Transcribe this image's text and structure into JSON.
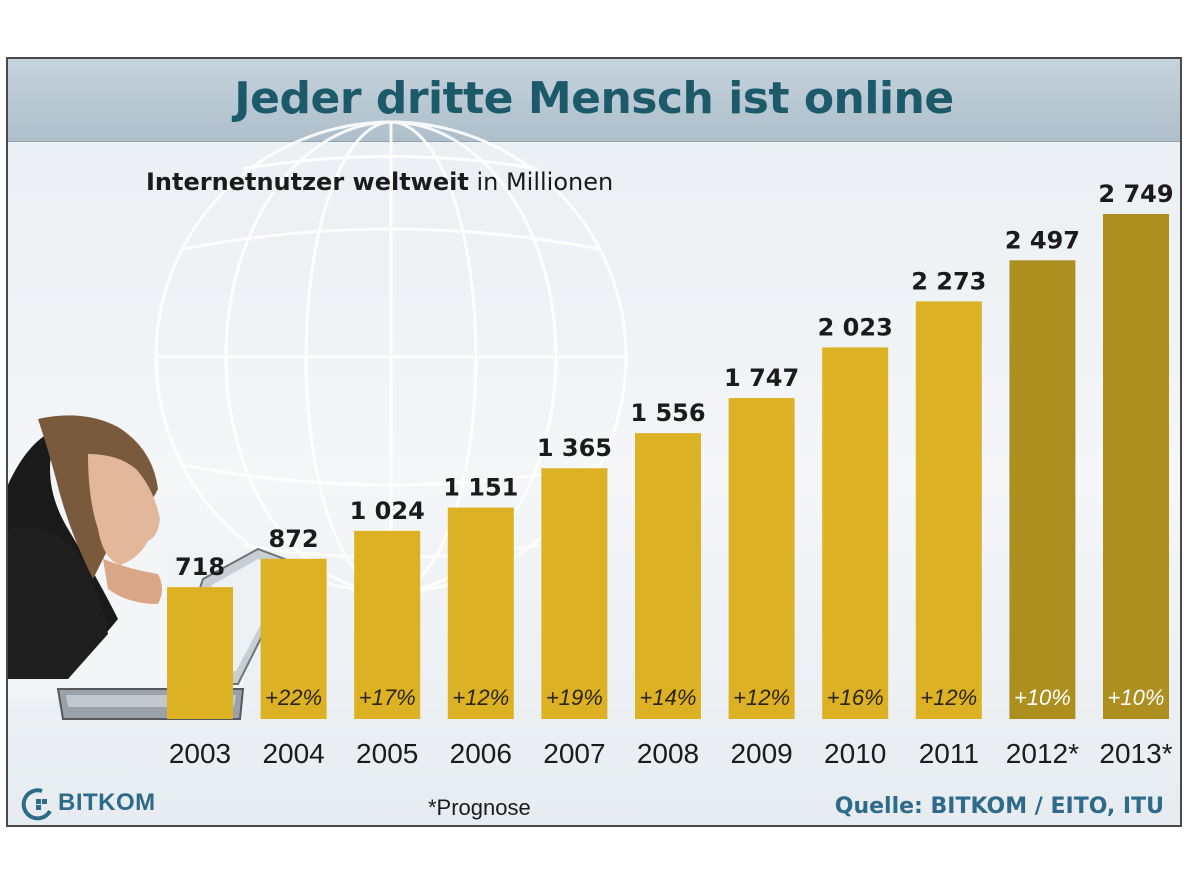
{
  "title": "Jeder dritte Mensch ist online",
  "subtitle": {
    "bold_part": "Internetnutzer weltweit",
    "regular_part": " in Millionen"
  },
  "footnote": "*Prognose",
  "source": "Quelle: BITKOM / EITO, ITU",
  "logo": {
    "text": "BITKOM",
    "icon": "bitkom-logo-icon"
  },
  "colors": {
    "actual_bar": "#dcb124",
    "forecast_bar": "#ad8f1f",
    "title": "#1c5a6a",
    "source": "#2e6b8a"
  },
  "chart_data": {
    "type": "bar",
    "categories": [
      "2003",
      "2004",
      "2005",
      "2006",
      "2007",
      "2008",
      "2009",
      "2010",
      "2011",
      "2012*",
      "2013*"
    ],
    "values": [
      718,
      872,
      1024,
      1151,
      1365,
      1556,
      1747,
      2023,
      2273,
      2497,
      2749
    ],
    "value_labels": [
      "718",
      "872",
      "1 024",
      "1 151",
      "1 365",
      "1 556",
      "1 747",
      "2 023",
      "2 273",
      "2 497",
      "2 749"
    ],
    "growth_labels": [
      "",
      "+22%",
      "+17%",
      "+12%",
      "+19%",
      "+14%",
      "+12%",
      "+16%",
      "+12%",
      "+10%",
      "+10%"
    ],
    "forecast": [
      false,
      false,
      false,
      false,
      false,
      false,
      false,
      false,
      false,
      true,
      true
    ],
    "ylim": [
      0,
      2749
    ],
    "grid": false
  }
}
